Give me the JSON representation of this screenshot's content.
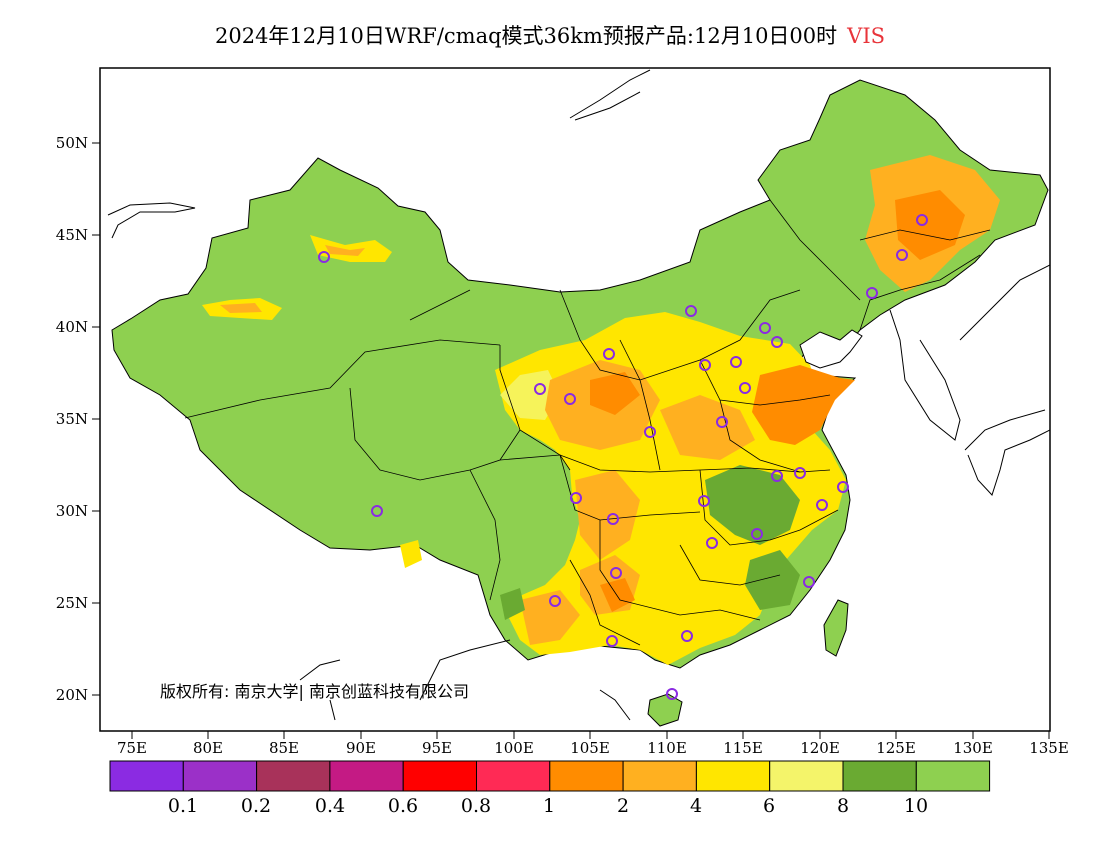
{
  "title": {
    "main": "2024年12月10日WRF/cmaq模式36km预报产品:12月10日00时",
    "variable": "VIS"
  },
  "map": {
    "lat_labels": [
      "50N",
      "45N",
      "40N",
      "35N",
      "30N",
      "25N",
      "20N"
    ],
    "lon_labels": [
      "75E",
      "80E",
      "85E",
      "90E",
      "95E",
      "100E",
      "105E",
      "110E",
      "115E",
      "120E",
      "125E",
      "130E",
      "135E"
    ],
    "copyright": "版权所有: 南京大学| 南京创蓝科技有限公司",
    "station_marker_color": "#8a2be2"
  },
  "legend": {
    "colors": [
      "#8b2be2",
      "#9b30c8",
      "#a8325a",
      "#c41a84",
      "#ff0000",
      "#ff2a55",
      "#ff8c00",
      "#ffb020",
      "#ffe600",
      "#f4f46a",
      "#6aaa32",
      "#8ed050"
    ],
    "labels": [
      "0.1",
      "0.2",
      "0.4",
      "0.6",
      "0.8",
      "1",
      "2",
      "4",
      "6",
      "8",
      "10"
    ]
  }
}
